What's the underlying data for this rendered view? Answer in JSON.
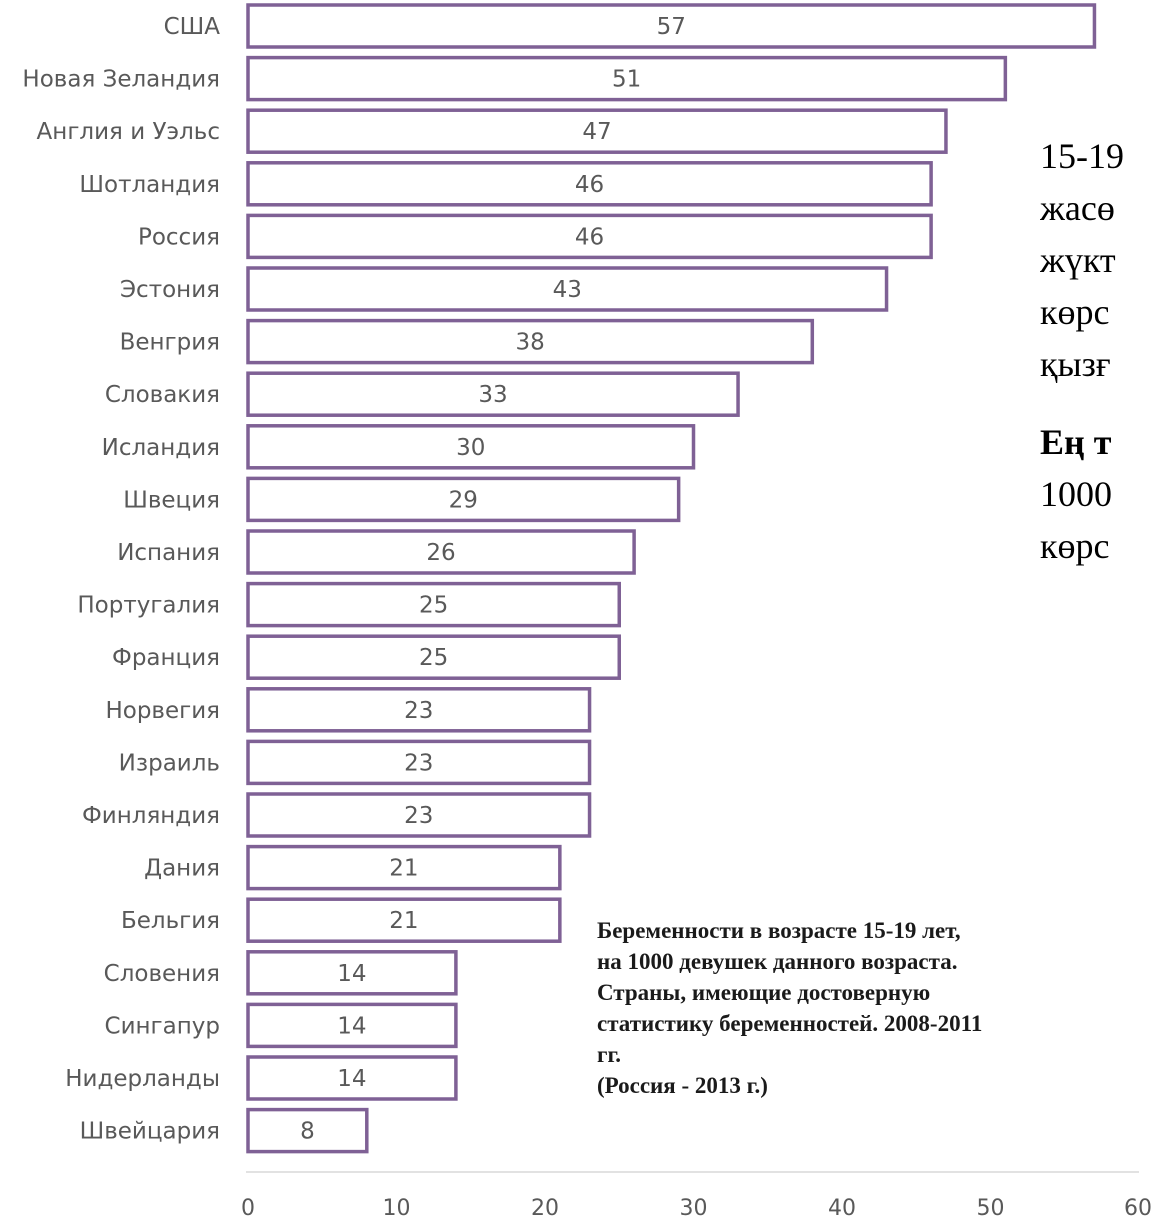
{
  "chart_data": {
    "type": "bar",
    "orientation": "horizontal",
    "categories": [
      "США",
      "Новая Зеландия",
      "Англия и Уэльс",
      "Шотландия",
      "Россия",
      "Эстония",
      "Венгрия",
      "Словакия",
      "Исландия",
      "Швеция",
      "Испания",
      "Португалия",
      "Франция",
      "Норвегия",
      "Израиль",
      "Финляндия",
      "Дания",
      "Бельгия",
      "Словения",
      "Сингапур",
      "Нидерланды",
      "Швейцария"
    ],
    "values": [
      57,
      51,
      47,
      46,
      46,
      43,
      38,
      33,
      30,
      29,
      26,
      25,
      25,
      23,
      23,
      23,
      21,
      21,
      14,
      14,
      14,
      8
    ],
    "data_labels": [
      "57",
      "51",
      "47",
      "46",
      "46",
      "43",
      "38",
      "33",
      "30",
      "29",
      "26",
      "25",
      "25",
      "23",
      "23",
      "23",
      "21",
      "21",
      "14",
      "14",
      "14",
      "8"
    ],
    "xlim": [
      0,
      60
    ],
    "x_ticks": [
      "0",
      "10",
      "20",
      "30",
      "40",
      "50",
      "60"
    ],
    "grid": false,
    "bar_fill": "#ffffff",
    "bar_stroke": "#7f6195",
    "label_color": "#595959",
    "axis_color": "#d9d9d9"
  },
  "note": {
    "lines": [
      "Беременности в возрасте 15-19 лет,",
      "на 1000 девушек данного возраста.",
      "Страны, имеющие достоверную",
      "статистику беременностей. 2008-2011",
      "гг.",
      "(Россия - 2013 г.)"
    ]
  },
  "side_text": {
    "lines": [
      "15-19",
      "жасө",
      "жүкт",
      "көрс",
      "қызғ"
    ],
    "bold_line": "Ең т",
    "lines2": [
      "1000",
      "көрс"
    ]
  }
}
